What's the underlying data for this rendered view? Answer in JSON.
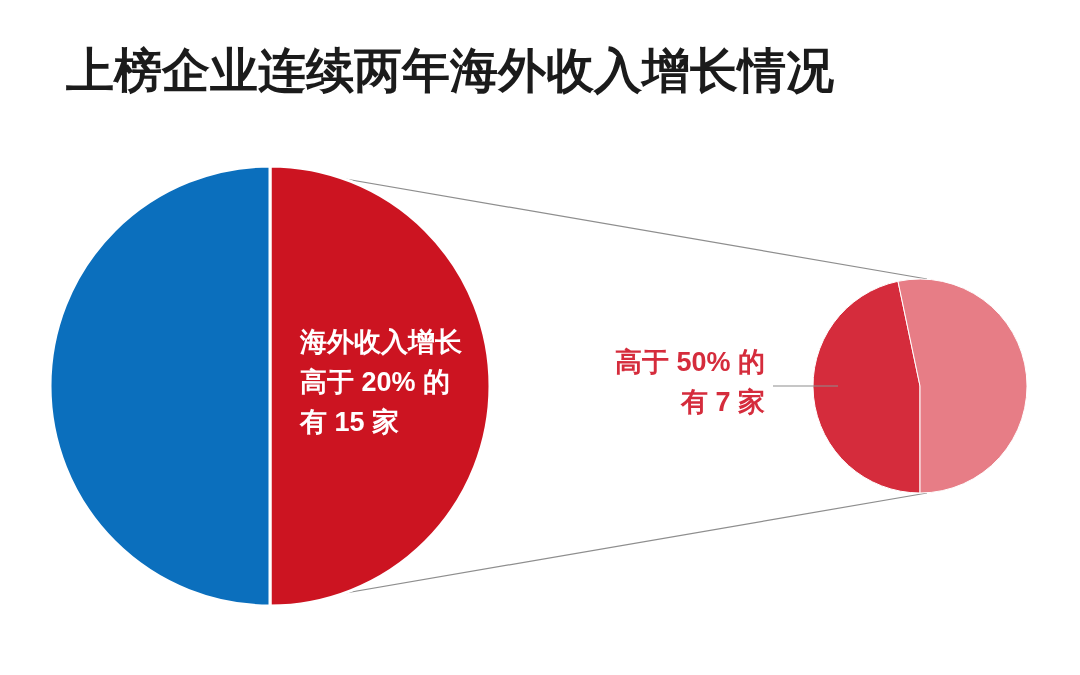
{
  "chart_data": [
    {
      "type": "pie",
      "title": "上榜企业连续两年海外收入增长情况",
      "categories": [
        "海外收入增长高于 20% 的有 15 家",
        null
      ],
      "values": [
        50,
        50
      ],
      "colors": [
        "#cc1421",
        "#0b6fbd"
      ]
    },
    {
      "type": "pie",
      "categories": [
        "高于 50% 的有 7 家",
        null
      ],
      "values": [
        46.7,
        53.3
      ],
      "colors": [
        "#d52c3c",
        "#e77d86"
      ]
    }
  ]
}
